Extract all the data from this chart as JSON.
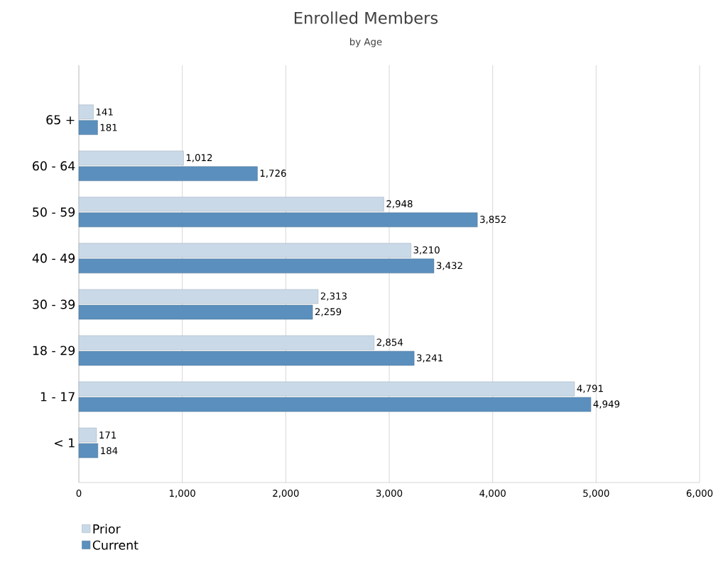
{
  "chart_data": {
    "type": "bar",
    "orientation": "horizontal",
    "title": "Enrolled Members",
    "subtitle": "by Age",
    "categories": [
      "65 +",
      "60 - 64",
      "50 - 59",
      "40 - 49",
      "30 - 39",
      "18 - 29",
      "1 - 17",
      "< 1"
    ],
    "series": [
      {
        "name": "Prior",
        "color": "#c9d9e8",
        "values": [
          141,
          1012,
          2948,
          3210,
          2313,
          2854,
          4791,
          171
        ],
        "value_labels": [
          "141",
          "1,012",
          "2,948",
          "3,210",
          "2,313",
          "2,854",
          "4,791",
          "171"
        ]
      },
      {
        "name": "Current",
        "color": "#5b8fbd",
        "values": [
          181,
          1726,
          3852,
          3432,
          2259,
          3241,
          4949,
          184
        ],
        "value_labels": [
          "181",
          "1,726",
          "3,852",
          "3,432",
          "2,259",
          "3,241",
          "4,949",
          "184"
        ]
      }
    ],
    "xlim": [
      0,
      6000
    ],
    "xticks": [
      0,
      {
        "value": 1000,
        "label": "1,000"
      },
      {
        "value": 2000,
        "label": "2,000"
      },
      {
        "value": 3000,
        "label": "3,000"
      },
      {
        "value": 4000,
        "label": "4,000"
      },
      {
        "value": 5000,
        "label": "5,000"
      },
      {
        "value": 6000,
        "label": "6,000"
      }
    ],
    "grid": "x",
    "legend": "bottom left"
  }
}
